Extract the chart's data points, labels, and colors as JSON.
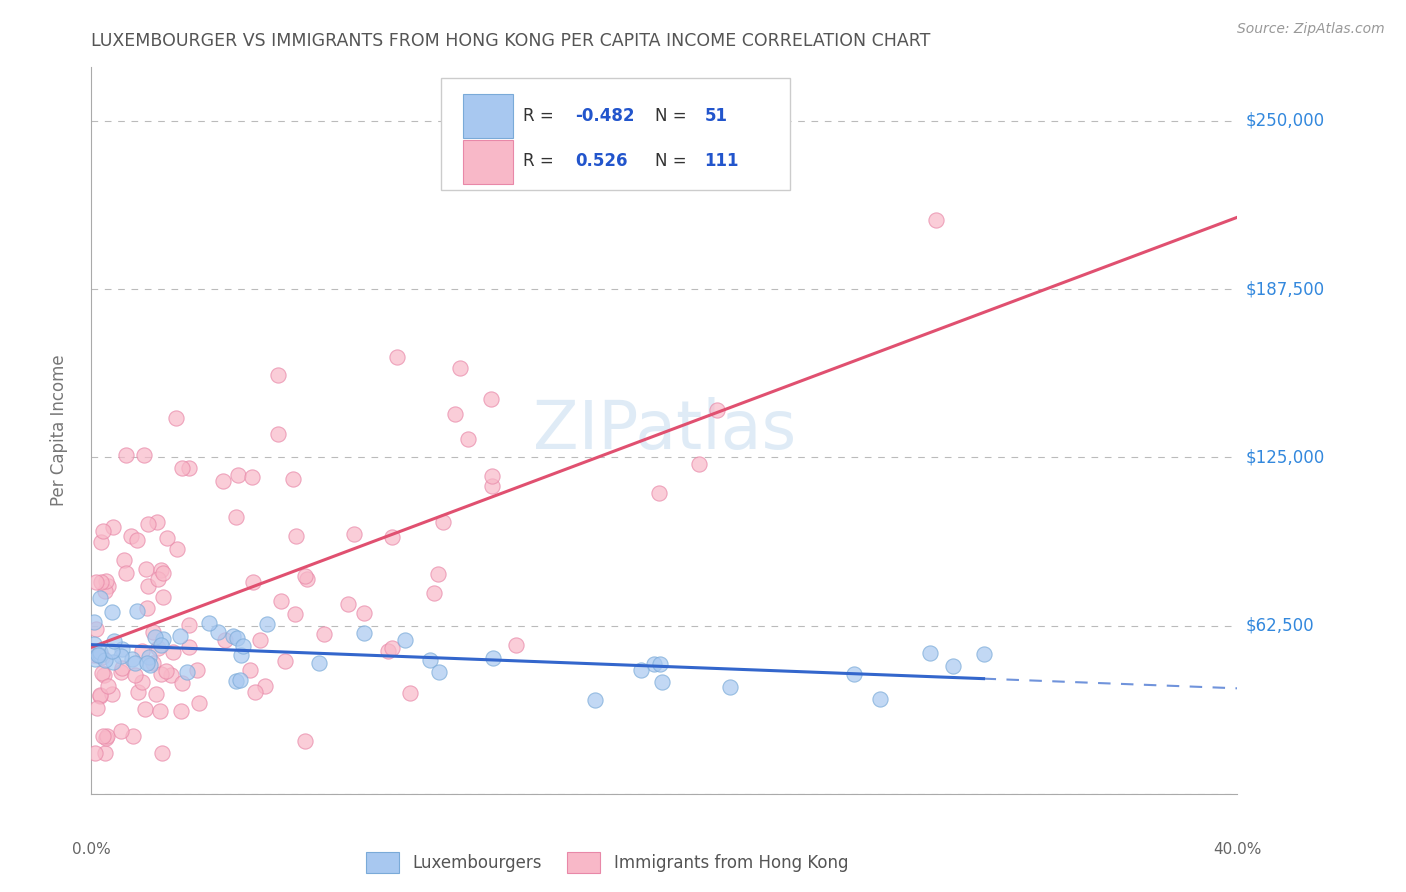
{
  "title": "LUXEMBOURGER VS IMMIGRANTS FROM HONG KONG PER CAPITA INCOME CORRELATION CHART",
  "source": "Source: ZipAtlas.com",
  "ylabel": "Per Capita Income",
  "xlim": [
    0.0,
    0.4
  ],
  "ylim": [
    0,
    270000
  ],
  "yticks": [
    0,
    62500,
    125000,
    187500,
    250000
  ],
  "ytick_labels": [
    "",
    "$62,500",
    "$125,000",
    "$187,500",
    "$250,000"
  ],
  "xticks": [
    0.0,
    0.1,
    0.2,
    0.3,
    0.4
  ],
  "xtick_labels": [
    "0.0%",
    "",
    "",
    "",
    "40.0%"
  ],
  "legend_box": {
    "R_lux": -0.482,
    "N_lux": 51,
    "R_hk": 0.526,
    "N_hk": 111
  },
  "lux_color": "#a8c8f0",
  "lux_edge_color": "#7aaad8",
  "hk_color": "#f8b8c8",
  "hk_edge_color": "#e888a8",
  "lux_line_color": "#3366cc",
  "hk_line_color": "#e05070",
  "background_color": "#ffffff",
  "watermark": "ZIPatlas",
  "grid_color": "#bbbbbb",
  "title_color": "#555555",
  "axis_label_color": "#777777",
  "ytick_color": "#3388dd",
  "seed": 99
}
